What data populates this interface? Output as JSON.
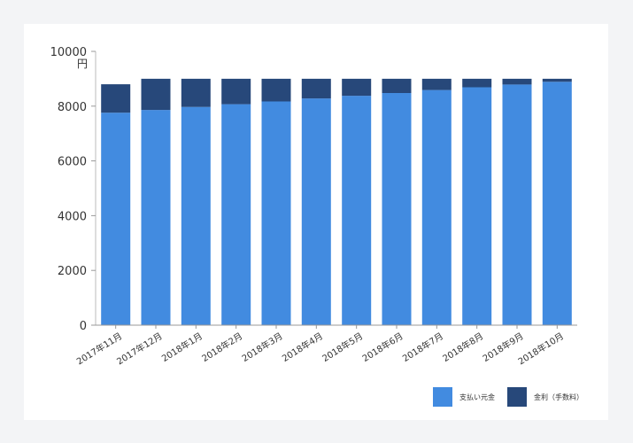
{
  "chart_data": {
    "type": "bar",
    "stacked": true,
    "y_unit": "円",
    "ylim": [
      0,
      10000
    ],
    "yticks": [
      0,
      2000,
      4000,
      6000,
      8000,
      10000
    ],
    "grid": false,
    "legend_position": "bottom-right",
    "categories": [
      "2017年11月",
      "2017年12月",
      "2018年1月",
      "2018年2月",
      "2018年3月",
      "2018年4月",
      "2018年5月",
      "2018年6月",
      "2018年7月",
      "2018年8月",
      "2018年9月",
      "2018年10月"
    ],
    "series": [
      {
        "name": "支払い元金",
        "color": "#428be0",
        "values": [
          7760,
          7860,
          7970,
          8070,
          8170,
          8280,
          8380,
          8480,
          8590,
          8690,
          8790,
          8890
        ]
      },
      {
        "name": "金利（手数料）",
        "color": "#27487a",
        "values": [
          1040,
          1140,
          1030,
          930,
          830,
          720,
          620,
          520,
          410,
          310,
          210,
          110
        ]
      }
    ]
  }
}
